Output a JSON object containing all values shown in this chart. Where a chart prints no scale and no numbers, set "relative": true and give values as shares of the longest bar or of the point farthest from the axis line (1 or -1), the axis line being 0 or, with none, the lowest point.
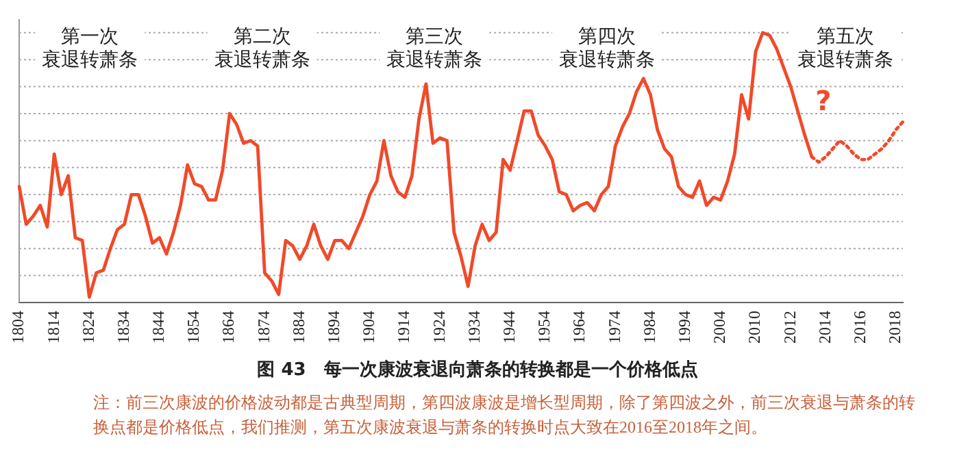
{
  "chart_data": {
    "type": "line",
    "relative": true,
    "title": "图 43　每一次康波衰退向萧条的转换都是一个价格低点",
    "categories": [
      "1804",
      null,
      null,
      null,
      null,
      "1814",
      null,
      null,
      null,
      null,
      "1824",
      null,
      null,
      null,
      null,
      "1834",
      null,
      null,
      null,
      null,
      "1844",
      null,
      null,
      null,
      null,
      "1854",
      null,
      null,
      null,
      null,
      "1864",
      null,
      null,
      null,
      null,
      "1874",
      null,
      null,
      null,
      null,
      "1884",
      null,
      null,
      null,
      null,
      "1894",
      null,
      null,
      null,
      null,
      "1904",
      null,
      null,
      null,
      null,
      "1914",
      null,
      null,
      null,
      null,
      "1924",
      null,
      null,
      null,
      null,
      "1934",
      null,
      null,
      null,
      null,
      "1944",
      null,
      null,
      null,
      null,
      "1954",
      null,
      null,
      null,
      null,
      "1964",
      null,
      null,
      null,
      null,
      "1974",
      null,
      null,
      null,
      null,
      "1984",
      null,
      null,
      null,
      null,
      "1994",
      null,
      null,
      null,
      null,
      "2004",
      null,
      null,
      null,
      null,
      "2010",
      null,
      null,
      null,
      null,
      "2012",
      null,
      null,
      null,
      null,
      "2014",
      null,
      null,
      null,
      null,
      "2016",
      null,
      null,
      null,
      null,
      "2018",
      null
    ],
    "series": [
      {
        "color": "#f04a2a",
        "line_style": "solid",
        "values": [
          0.43,
          0.29,
          0.32,
          0.36,
          0.28,
          0.55,
          0.4,
          0.47,
          0.24,
          0.23,
          0.02,
          0.11,
          0.12,
          0.2,
          0.27,
          0.29,
          0.4,
          0.4,
          0.32,
          0.22,
          0.24,
          0.18,
          0.26,
          0.36,
          0.51,
          0.44,
          0.43,
          0.38,
          0.38,
          0.49,
          0.7,
          0.66,
          0.59,
          0.6,
          0.58,
          0.11,
          0.08,
          0.03,
          0.23,
          0.21,
          0.16,
          0.21,
          0.29,
          0.21,
          0.16,
          0.23,
          0.23,
          0.2,
          0.26,
          0.32,
          0.4,
          0.45,
          0.6,
          0.47,
          0.41,
          0.39,
          0.47,
          0.68,
          0.81,
          0.59,
          0.61,
          0.6,
          0.26,
          0.17,
          0.06,
          0.21,
          0.29,
          0.23,
          0.26,
          0.53,
          0.49,
          0.6,
          0.71,
          0.71,
          0.62,
          0.58,
          0.53,
          0.41,
          0.4,
          0.34,
          0.36,
          0.37,
          0.34,
          0.4,
          0.43,
          0.58,
          0.65,
          0.7,
          0.78,
          0.83,
          0.77,
          0.64,
          0.57,
          0.54,
          0.43,
          0.4,
          0.39,
          0.45,
          0.36,
          0.39,
          0.38,
          0.45,
          0.55,
          0.77,
          0.68,
          0.93,
          1.0,
          0.99,
          0.94,
          0.87,
          0.8,
          0.71,
          0.62,
          0.54,
          null,
          null,
          null,
          null,
          null,
          null,
          null,
          null,
          null,
          null,
          null,
          null,
          null
        ]
      },
      {
        "color": "#f04a2a",
        "line_style": "dotted",
        "values": [
          null,
          null,
          null,
          null,
          null,
          null,
          null,
          null,
          null,
          null,
          null,
          null,
          null,
          null,
          null,
          null,
          null,
          null,
          null,
          null,
          null,
          null,
          null,
          null,
          null,
          null,
          null,
          null,
          null,
          null,
          null,
          null,
          null,
          null,
          null,
          null,
          null,
          null,
          null,
          null,
          null,
          null,
          null,
          null,
          null,
          null,
          null,
          null,
          null,
          null,
          null,
          null,
          null,
          null,
          null,
          null,
          null,
          null,
          null,
          null,
          null,
          null,
          null,
          null,
          null,
          null,
          null,
          null,
          null,
          null,
          null,
          null,
          null,
          null,
          null,
          null,
          null,
          null,
          null,
          null,
          null,
          null,
          null,
          null,
          null,
          null,
          null,
          null,
          null,
          null,
          null,
          null,
          null,
          null,
          null,
          null,
          null,
          null,
          null,
          null,
          null,
          null,
          null,
          null,
          null,
          null,
          null,
          null,
          null,
          null,
          null,
          null,
          null,
          0.54,
          0.52,
          0.54,
          0.57,
          0.6,
          0.58,
          0.55,
          0.53,
          0.53,
          0.55,
          0.57,
          0.6,
          0.64,
          0.67
        ]
      }
    ],
    "grid": "y",
    "legend": false,
    "marker": "none",
    "annotations": [
      "第一次衰退转萧条",
      "第二次衰退转萧条",
      "第三次衰退转萧条",
      "第四次衰退转萧条",
      "第五次衰退转萧条",
      "?",
      "注：前三次康波的价格波动都是古典型周期，第四波康波是增长型周期，除了第四波之外，前三次衰退与萧条的转换点都是价格低点，我们推测，第五次康波衰退与萧条的转换时点大致在2016至2018年之间。"
    ]
  }
}
